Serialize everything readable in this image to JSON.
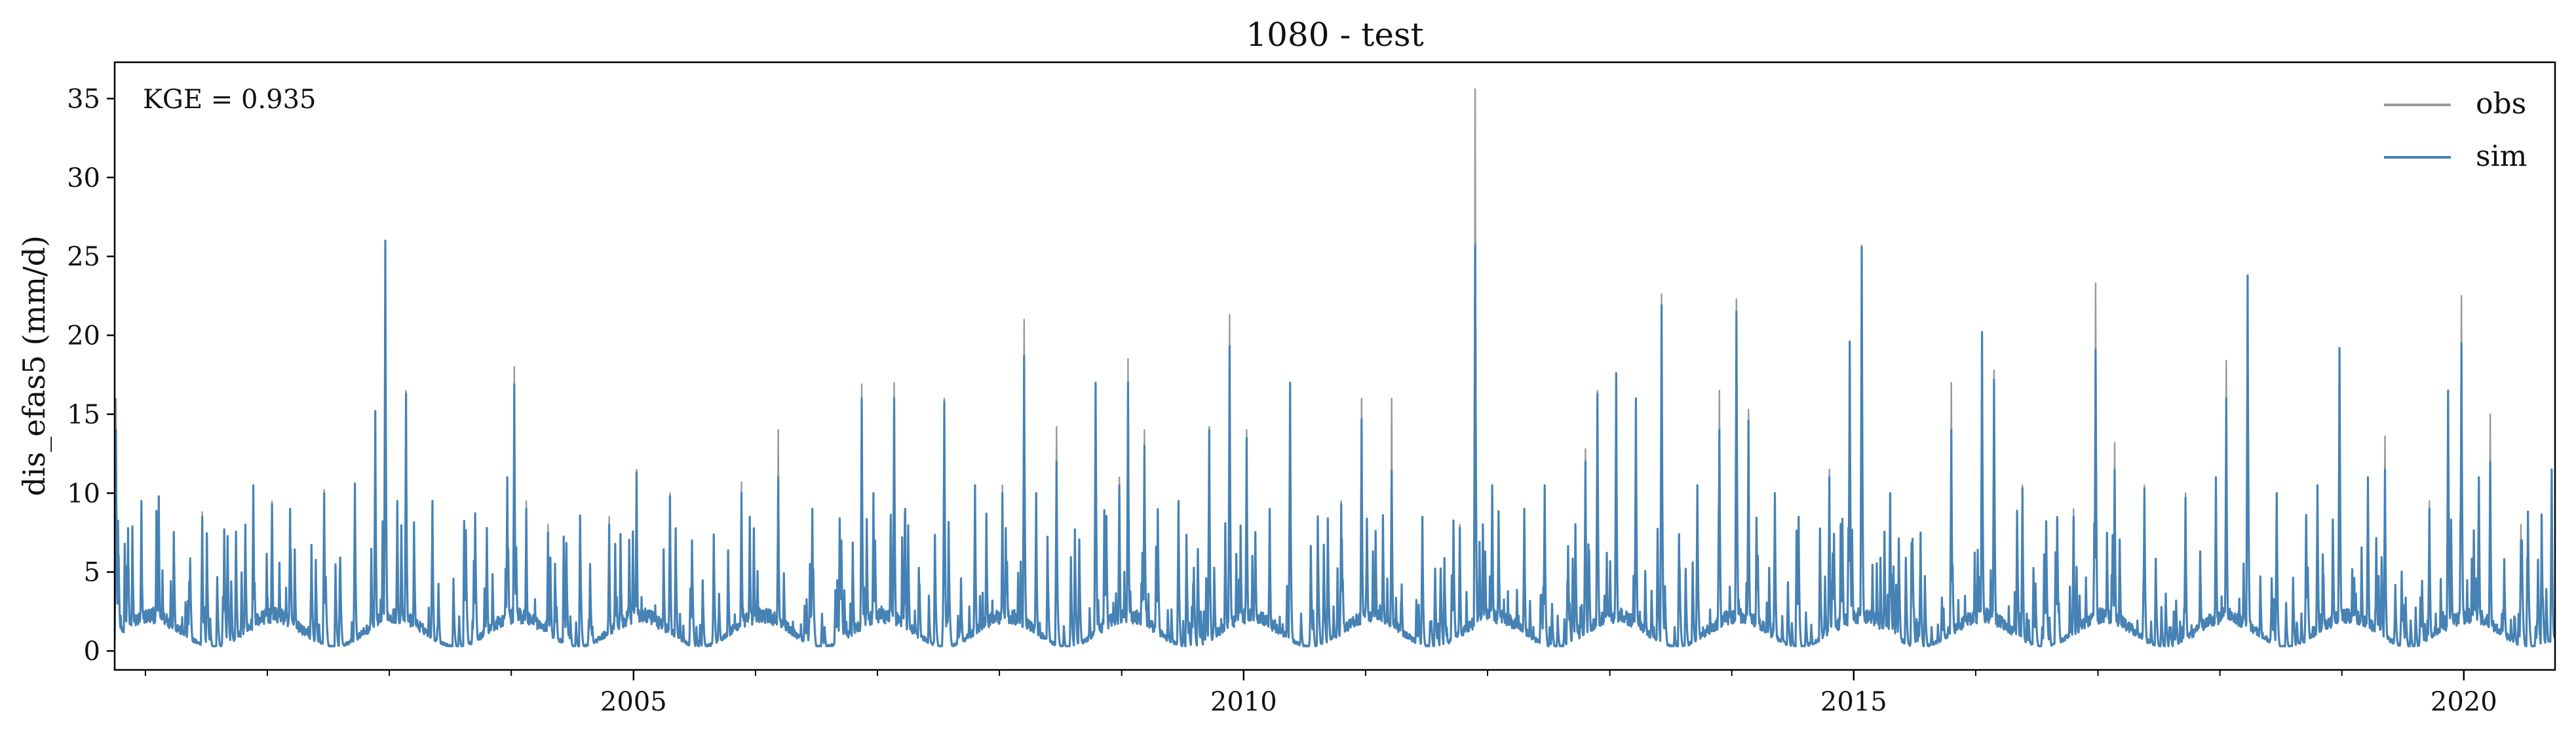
{
  "chart_data": {
    "type": "line",
    "title": "1080 - test",
    "xlabel": "",
    "ylabel": "dis_efas5 (mm/d)",
    "annotation": "KGE = 0.935",
    "xlim": [
      "2000-10-01",
      "2020-09-30"
    ],
    "ylim": [
      -1.2,
      37.3
    ],
    "x_ticks": [
      {
        "date": "2005-01-01",
        "label": "2005"
      },
      {
        "date": "2010-01-01",
        "label": "2010"
      },
      {
        "date": "2015-01-01",
        "label": "2015"
      },
      {
        "date": "2020-01-01",
        "label": "2020"
      }
    ],
    "y_ticks": [
      0,
      5,
      10,
      15,
      20,
      25,
      30,
      35
    ],
    "grid": false,
    "legend": "top-right",
    "series": [
      {
        "name": "obs",
        "color": "#999999",
        "peaks": [
          [
            "2000-10-05",
            16.0
          ],
          [
            "2000-12-20",
            9.0
          ],
          [
            "2001-02-10",
            9.5
          ],
          [
            "2001-06-20",
            8.8
          ],
          [
            "2001-11-20",
            10.5
          ],
          [
            "2002-01-15",
            9.5
          ],
          [
            "2002-03-10",
            9.0
          ],
          [
            "2002-06-20",
            10.2
          ],
          [
            "2002-09-20",
            10.5
          ],
          [
            "2002-11-20",
            15.0
          ],
          [
            "2002-12-20",
            26.0
          ],
          [
            "2003-01-25",
            9.5
          ],
          [
            "2003-02-20",
            16.5
          ],
          [
            "2003-05-10",
            9.5
          ],
          [
            "2003-10-20",
            7.5
          ],
          [
            "2003-12-20",
            11.0
          ],
          [
            "2004-01-10",
            18.0
          ],
          [
            "2004-02-15",
            9.5
          ],
          [
            "2004-04-20",
            8.0
          ],
          [
            "2004-10-20",
            8.5
          ],
          [
            "2005-01-10",
            11.5
          ],
          [
            "2005-04-20",
            10.0
          ],
          [
            "2005-11-20",
            10.7
          ],
          [
            "2005-12-15",
            8.5
          ],
          [
            "2006-03-10",
            14.0
          ],
          [
            "2006-06-20",
            9.0
          ],
          [
            "2006-09-15",
            7.0
          ],
          [
            "2006-11-15",
            16.9
          ],
          [
            "2006-12-20",
            10.0
          ],
          [
            "2007-02-20",
            17.0
          ],
          [
            "2007-03-25",
            9.0
          ],
          [
            "2007-07-20",
            16.0
          ],
          [
            "2007-10-20",
            10.5
          ],
          [
            "2008-01-10",
            10.5
          ],
          [
            "2008-03-15",
            21.0
          ],
          [
            "2008-04-20",
            10.0
          ],
          [
            "2008-06-20",
            14.2
          ],
          [
            "2008-10-15",
            17.0
          ],
          [
            "2008-12-25",
            11.0
          ],
          [
            "2009-01-20",
            18.5
          ],
          [
            "2009-03-10",
            14.0
          ],
          [
            "2009-06-20",
            9.5
          ],
          [
            "2009-09-20",
            14.2
          ],
          [
            "2009-11-20",
            21.3
          ],
          [
            "2010-01-10",
            14.0
          ],
          [
            "2010-03-20",
            9.0
          ],
          [
            "2010-05-20",
            17.0
          ],
          [
            "2010-10-20",
            9.5
          ],
          [
            "2010-12-20",
            16.0
          ],
          [
            "2011-03-20",
            16.0
          ],
          [
            "2011-06-20",
            8.5
          ],
          [
            "2011-10-10",
            8.0
          ],
          [
            "2011-11-25",
            35.6
          ],
          [
            "2012-01-15",
            10.5
          ],
          [
            "2012-04-20",
            9.0
          ],
          [
            "2012-06-20",
            10.5
          ],
          [
            "2012-10-20",
            12.8
          ],
          [
            "2012-11-25",
            16.5
          ],
          [
            "2013-01-20",
            17.6
          ],
          [
            "2013-03-20",
            16.0
          ],
          [
            "2013-06-05",
            22.6
          ],
          [
            "2013-09-20",
            10.5
          ],
          [
            "2013-11-25",
            16.5
          ],
          [
            "2014-01-15",
            22.3
          ],
          [
            "2014-02-20",
            15.3
          ],
          [
            "2014-05-10",
            10.0
          ],
          [
            "2014-07-20",
            8.5
          ],
          [
            "2014-10-20",
            11.5
          ],
          [
            "2014-12-20",
            19.5
          ],
          [
            "2015-01-25",
            25.7
          ],
          [
            "2015-04-20",
            10.0
          ],
          [
            "2015-07-20",
            7.5
          ],
          [
            "2015-10-20",
            17.0
          ],
          [
            "2016-01-20",
            20.2
          ],
          [
            "2016-02-25",
            17.8
          ],
          [
            "2016-05-20",
            10.5
          ],
          [
            "2016-10-20",
            9.0
          ],
          [
            "2016-12-25",
            23.3
          ],
          [
            "2017-02-20",
            13.2
          ],
          [
            "2017-05-20",
            10.5
          ],
          [
            "2017-09-20",
            10.0
          ],
          [
            "2017-12-20",
            11.0
          ],
          [
            "2018-01-20",
            18.4
          ],
          [
            "2018-03-25",
            23.8
          ],
          [
            "2018-06-20",
            10.0
          ],
          [
            "2018-10-20",
            10.5
          ],
          [
            "2018-12-25",
            19.2
          ],
          [
            "2019-03-20",
            11.0
          ],
          [
            "2019-05-10",
            13.6
          ],
          [
            "2019-09-20",
            9.5
          ],
          [
            "2019-11-15",
            16.5
          ],
          [
            "2019-12-25",
            22.5
          ],
          [
            "2020-02-15",
            10.5
          ],
          [
            "2020-03-20",
            15.0
          ],
          [
            "2020-06-20",
            8.0
          ],
          [
            "2020-09-20",
            11.5
          ]
        ]
      },
      {
        "name": "sim",
        "color": "#4682b4",
        "peaks": [
          [
            "2000-10-05",
            14.0
          ],
          [
            "2000-12-20",
            9.5
          ],
          [
            "2001-02-10",
            9.8
          ],
          [
            "2001-06-20",
            8.5
          ],
          [
            "2001-11-20",
            10.5
          ],
          [
            "2002-01-15",
            9.3
          ],
          [
            "2002-03-10",
            9.0
          ],
          [
            "2002-06-20",
            10.0
          ],
          [
            "2002-09-20",
            10.6
          ],
          [
            "2002-11-20",
            15.2
          ],
          [
            "2002-12-20",
            26.0
          ],
          [
            "2003-01-25",
            9.5
          ],
          [
            "2003-02-20",
            16.3
          ],
          [
            "2003-05-10",
            9.5
          ],
          [
            "2003-10-20",
            7.8
          ],
          [
            "2003-12-20",
            11.0
          ],
          [
            "2004-01-10",
            16.9
          ],
          [
            "2004-02-15",
            9.0
          ],
          [
            "2004-04-20",
            7.5
          ],
          [
            "2004-10-20",
            8.0
          ],
          [
            "2005-01-10",
            11.3
          ],
          [
            "2005-04-20",
            9.8
          ],
          [
            "2005-11-20",
            10.0
          ],
          [
            "2005-12-15",
            8.5
          ],
          [
            "2006-03-10",
            11.0
          ],
          [
            "2006-06-20",
            9.0
          ],
          [
            "2006-09-15",
            7.0
          ],
          [
            "2006-11-15",
            16.0
          ],
          [
            "2006-12-20",
            10.0
          ],
          [
            "2007-02-20",
            16.0
          ],
          [
            "2007-03-25",
            9.0
          ],
          [
            "2007-07-20",
            15.8
          ],
          [
            "2007-10-20",
            10.5
          ],
          [
            "2008-01-10",
            10.0
          ],
          [
            "2008-03-15",
            18.7
          ],
          [
            "2008-04-20",
            10.0
          ],
          [
            "2008-06-20",
            12.0
          ],
          [
            "2008-10-15",
            17.0
          ],
          [
            "2008-12-25",
            10.5
          ],
          [
            "2009-01-20",
            17.0
          ],
          [
            "2009-03-10",
            13.0
          ],
          [
            "2009-06-20",
            9.5
          ],
          [
            "2009-09-20",
            14.0
          ],
          [
            "2009-11-20",
            19.3
          ],
          [
            "2010-01-10",
            13.5
          ],
          [
            "2010-03-20",
            9.0
          ],
          [
            "2010-05-20",
            17.0
          ],
          [
            "2010-10-20",
            9.3
          ],
          [
            "2010-12-20",
            14.7
          ],
          [
            "2011-03-20",
            11.4
          ],
          [
            "2011-06-20",
            8.5
          ],
          [
            "2011-10-10",
            7.8
          ],
          [
            "2011-11-25",
            25.7
          ],
          [
            "2012-01-15",
            10.5
          ],
          [
            "2012-04-20",
            9.0
          ],
          [
            "2012-06-20",
            10.5
          ],
          [
            "2012-10-20",
            12.0
          ],
          [
            "2012-11-25",
            16.3
          ],
          [
            "2013-01-20",
            17.6
          ],
          [
            "2013-03-20",
            16.0
          ],
          [
            "2013-06-05",
            21.9
          ],
          [
            "2013-09-20",
            10.5
          ],
          [
            "2013-11-25",
            14.0
          ],
          [
            "2014-01-15",
            21.5
          ],
          [
            "2014-02-20",
            14.6
          ],
          [
            "2014-05-10",
            10.0
          ],
          [
            "2014-07-20",
            8.5
          ],
          [
            "2014-10-20",
            11.0
          ],
          [
            "2014-12-20",
            19.6
          ],
          [
            "2015-01-25",
            25.6
          ],
          [
            "2015-04-20",
            10.0
          ],
          [
            "2015-07-20",
            7.5
          ],
          [
            "2015-10-20",
            14.0
          ],
          [
            "2016-01-20",
            20.2
          ],
          [
            "2016-02-25",
            17.2
          ],
          [
            "2016-05-20",
            10.3
          ],
          [
            "2016-10-20",
            8.5
          ],
          [
            "2016-12-25",
            19.1
          ],
          [
            "2017-02-20",
            11.5
          ],
          [
            "2017-05-20",
            10.3
          ],
          [
            "2017-09-20",
            9.7
          ],
          [
            "2017-12-20",
            11.0
          ],
          [
            "2018-01-20",
            16.0
          ],
          [
            "2018-03-25",
            23.8
          ],
          [
            "2018-06-20",
            10.0
          ],
          [
            "2018-10-20",
            10.5
          ],
          [
            "2018-12-25",
            19.2
          ],
          [
            "2019-03-20",
            11.0
          ],
          [
            "2019-05-10",
            11.5
          ],
          [
            "2019-09-20",
            9.0
          ],
          [
            "2019-11-15",
            16.5
          ],
          [
            "2019-12-25",
            19.5
          ],
          [
            "2020-02-15",
            11.0
          ],
          [
            "2020-03-20",
            12.0
          ],
          [
            "2020-06-20",
            7.0
          ],
          [
            "2020-09-20",
            11.5
          ]
        ]
      }
    ]
  }
}
